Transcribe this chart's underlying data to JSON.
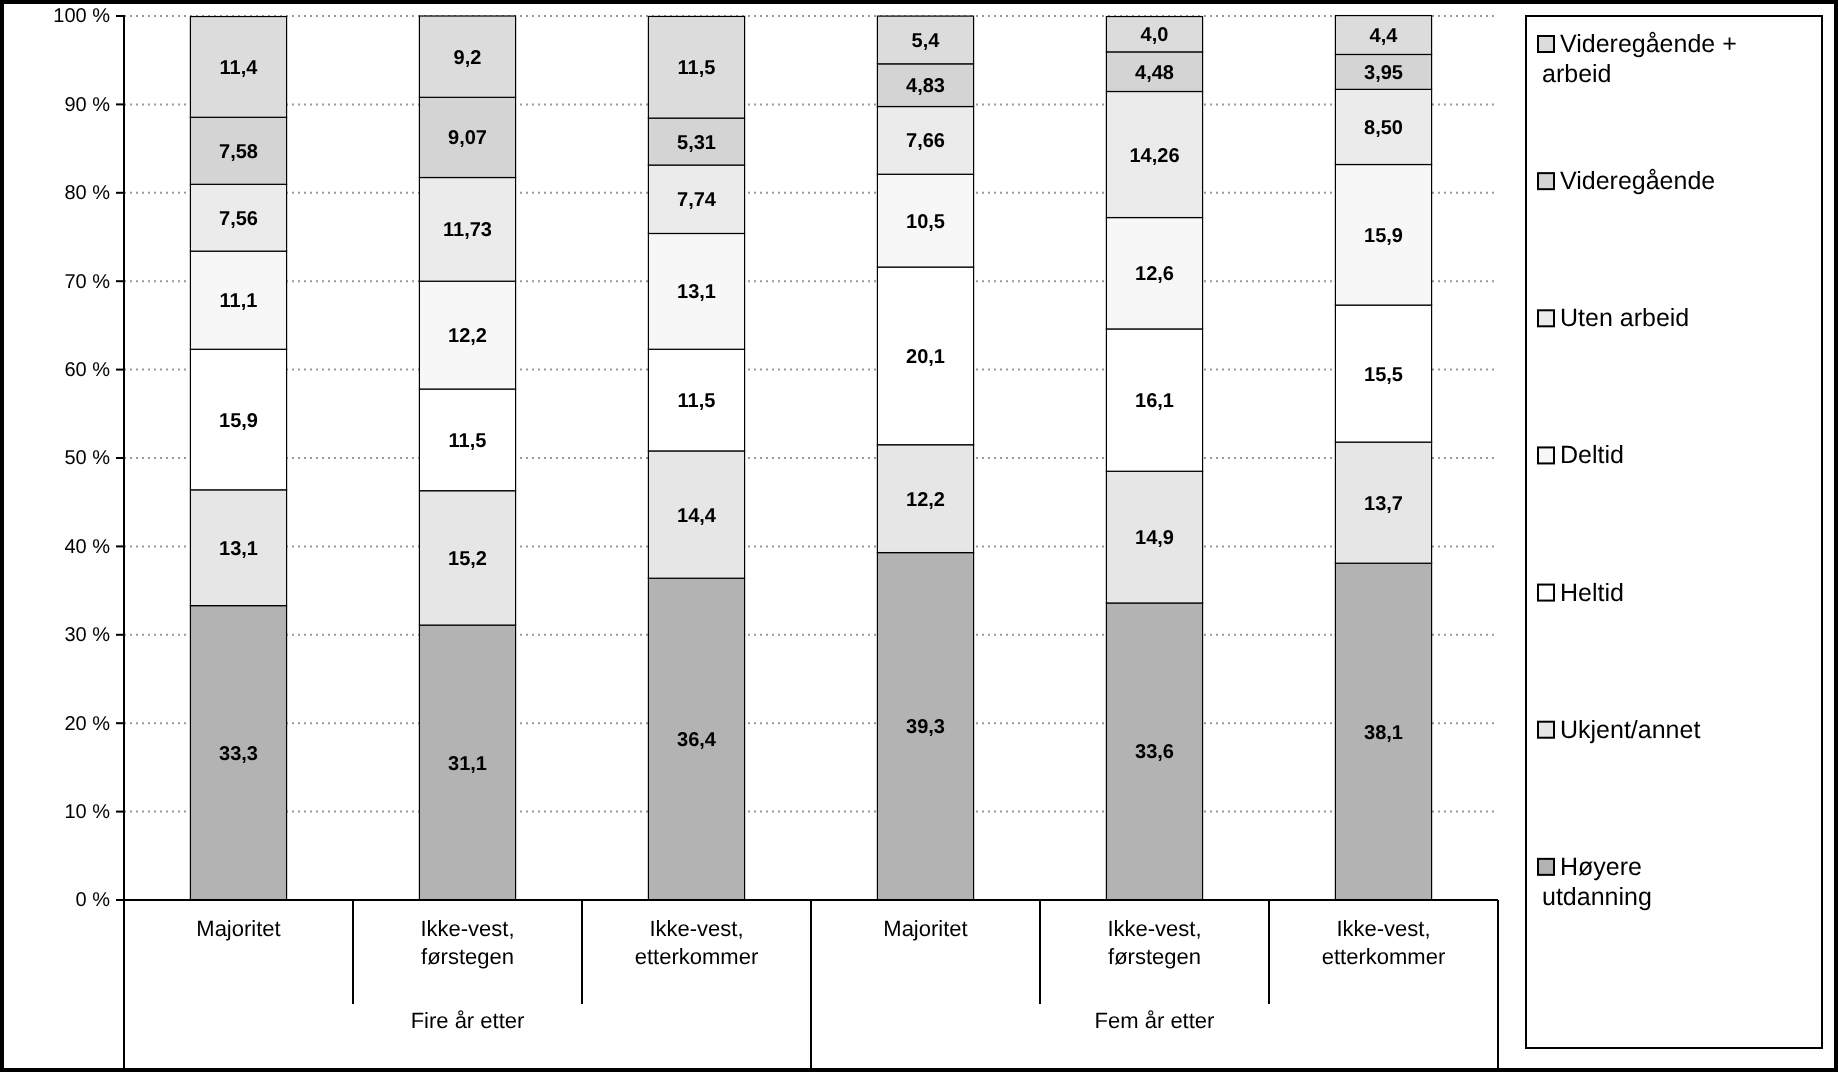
{
  "chart_data": {
    "type": "bar",
    "stacked": true,
    "categories": [
      "Majoritet",
      "Ikke-vest, førstegen",
      "Ikke-vest, etterkommer",
      "Majoritet",
      "Ikke-vest, førstegen",
      "Ikke-vest, etterkommer"
    ],
    "series": [
      {
        "name": "Høyere utdanning",
        "color": "#b3b3b3",
        "values": [
          33.3,
          31.1,
          36.4,
          39.3,
          33.6,
          38.1
        ],
        "value_labels": [
          "33,3",
          "31,1",
          "36,4",
          "39,3",
          "33,6",
          "38,1"
        ]
      },
      {
        "name": "Ukjent/annet",
        "color": "#e6e6e6",
        "values": [
          13.1,
          15.2,
          14.4,
          12.2,
          14.9,
          13.7
        ],
        "value_labels": [
          "13,1",
          "15,2",
          "14,4",
          "12,2",
          "14,9",
          "13,7"
        ]
      },
      {
        "name": "Heltid",
        "color": "#ffffff",
        "values": [
          15.9,
          11.5,
          11.5,
          20.1,
          16.1,
          15.5
        ],
        "value_labels": [
          "15,9",
          "11,5",
          "11,5",
          "20,1",
          "16,1",
          "15,5"
        ]
      },
      {
        "name": "Deltid",
        "color": "#f7f7f7",
        "values": [
          11.1,
          12.2,
          13.1,
          10.5,
          12.6,
          15.9
        ],
        "value_labels": [
          "11,1",
          "12,2",
          "13,1",
          "10,5",
          "12,6",
          "15,9"
        ]
      },
      {
        "name": "Uten arbeid",
        "color": "#ebebeb",
        "values": [
          7.56,
          11.73,
          7.74,
          7.66,
          14.26,
          8.5
        ],
        "value_labels": [
          "7,56",
          "11,73",
          "7,74",
          "7,66",
          "14,26",
          "8,50"
        ]
      },
      {
        "name": "Videregående",
        "color": "#d4d4d4",
        "values": [
          7.58,
          9.07,
          5.31,
          4.83,
          4.48,
          3.95
        ],
        "value_labels": [
          "7,58",
          "9,07",
          "5,31",
          "4,83",
          "4,48",
          "3,95"
        ]
      },
      {
        "name": "Videregående + arbeid",
        "color": "#dcdcdc",
        "values": [
          11.4,
          9.2,
          11.5,
          5.4,
          4.0,
          4.4
        ],
        "value_labels": [
          "11,4",
          "9,2",
          "11,5",
          "5,4",
          "4,0",
          "4,4"
        ]
      }
    ],
    "ylim": [
      0,
      100
    ],
    "yticks": [
      {
        "value": 0,
        "label": "0 %"
      },
      {
        "value": 10,
        "label": "10 %"
      },
      {
        "value": 20,
        "label": "20 %"
      },
      {
        "value": 30,
        "label": "30 %"
      },
      {
        "value": 40,
        "label": "40 %"
      },
      {
        "value": 50,
        "label": "50 %"
      },
      {
        "value": 60,
        "label": "60 %"
      },
      {
        "value": 70,
        "label": "70 %"
      },
      {
        "value": 80,
        "label": "80 %"
      },
      {
        "value": 90,
        "label": "90 %"
      },
      {
        "value": 100,
        "label": "100 %"
      }
    ],
    "grid": "y",
    "legend": "right",
    "annotations": [
      "Fire år etter",
      "Fem år etter"
    ]
  }
}
